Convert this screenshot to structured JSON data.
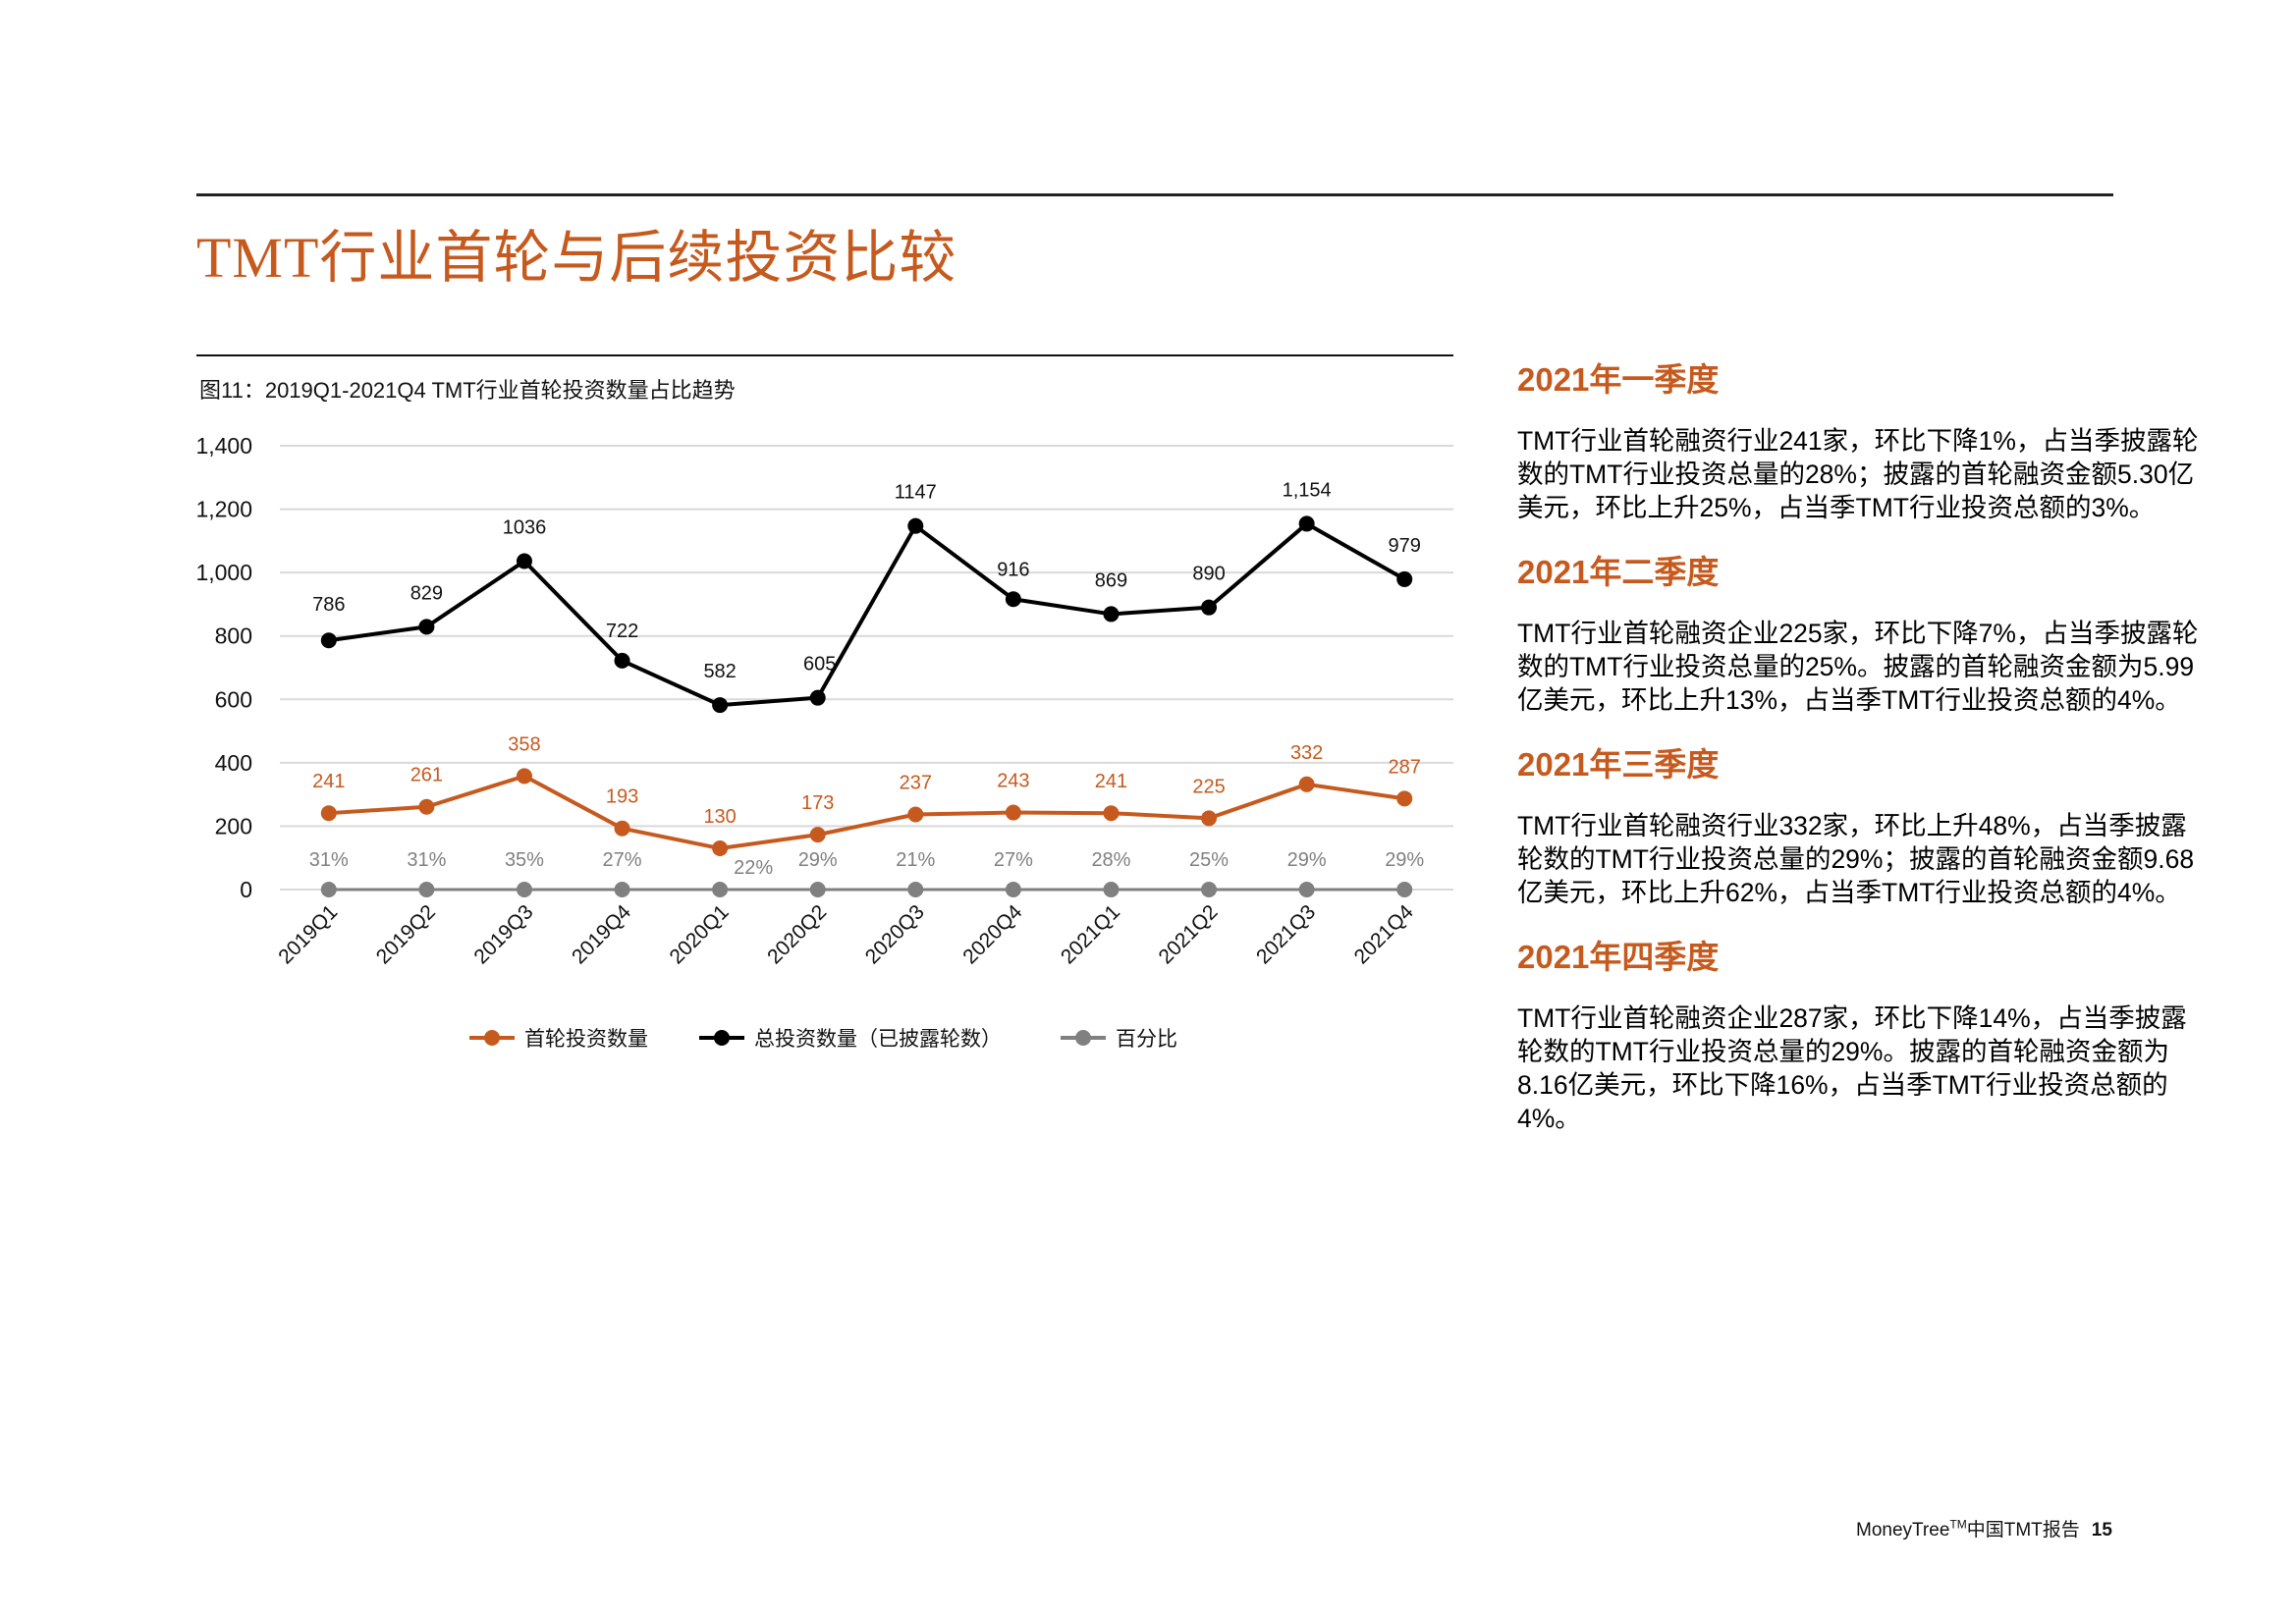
{
  "page": {
    "title": "TMT行业首轮与后续投资比较",
    "footer_brand": "MoneyTree",
    "footer_tm": "TM",
    "footer_suffix": "中国TMT报告",
    "page_number": "15"
  },
  "colors": {
    "accent": "#c65a1e",
    "series_first": "#c65a1e",
    "series_total": "#000000",
    "series_percent": "#808080",
    "grid": "#d9d9d9"
  },
  "chart_data": {
    "type": "line",
    "title": "图11：2019Q1-2021Q4 TMT行业首轮投资数量占比趋势",
    "categories": [
      "2019Q1",
      "2019Q2",
      "2019Q3",
      "2019Q4",
      "2020Q1",
      "2020Q2",
      "2020Q3",
      "2020Q4",
      "2021Q1",
      "2021Q2",
      "2021Q3",
      "2021Q4"
    ],
    "series": [
      {
        "name": "首轮投资数量",
        "values": [
          241,
          261,
          358,
          193,
          130,
          173,
          237,
          243,
          241,
          225,
          332,
          287
        ],
        "labels": [
          "241",
          "261",
          "358",
          "193",
          "130",
          "173",
          "237",
          "243",
          "241",
          "225",
          "332",
          "287"
        ]
      },
      {
        "name": "总投资数量（已披露轮数）",
        "values": [
          786,
          829,
          1036,
          722,
          582,
          605,
          1147,
          916,
          869,
          890,
          1154,
          979
        ],
        "labels": [
          "786",
          "829",
          "1036",
          "722",
          "582",
          "605",
          "1147",
          "916",
          "869",
          "890",
          "1,154",
          "979"
        ]
      },
      {
        "name": "百分比",
        "values": [
          0.31,
          0.31,
          0.35,
          0.27,
          0.22,
          0.29,
          0.21,
          0.27,
          0.28,
          0.25,
          0.29,
          0.29
        ],
        "labels": [
          "31%",
          "31%",
          "35%",
          "27%",
          "22%",
          "29%",
          "21%",
          "27%",
          "28%",
          "25%",
          "29%",
          "29%"
        ]
      }
    ],
    "yticks": [
      "0",
      "200",
      "400",
      "600",
      "800",
      "1,000",
      "1,200",
      "1,400"
    ],
    "ylim": [
      0,
      1400
    ],
    "grid": true,
    "legend": "bottom"
  },
  "sections": [
    {
      "heading": "2021年一季度",
      "body": "TMT行业首轮融资行业241家，环比下降1%，占当季披露轮数的TMT行业投资总量的28%；披露的首轮融资金额5.30亿美元，环比上升25%，占当季TMT行业投资总额的3%。"
    },
    {
      "heading": "2021年二季度",
      "body": "TMT行业首轮融资企业225家，环比下降7%，占当季披露轮数的TMT行业投资总量的25%。披露的首轮融资金额为5.99亿美元，环比上升13%，占当季TMT行业投资总额的4%。"
    },
    {
      "heading": "2021年三季度",
      "body": "TMT行业首轮融资行业332家，环比上升48%，占当季披露轮数的TMT行业投资总量的29%；披露的首轮融资金额9.68亿美元，环比上升62%，占当季TMT行业投资总额的4%。"
    },
    {
      "heading": "2021年四季度",
      "body": "TMT行业首轮融资企业287家，环比下降14%，占当季披露轮数的TMT行业投资总量的29%。披露的首轮融资金额为8.16亿美元，环比下降16%，占当季TMT行业投资总额的4%。"
    }
  ]
}
